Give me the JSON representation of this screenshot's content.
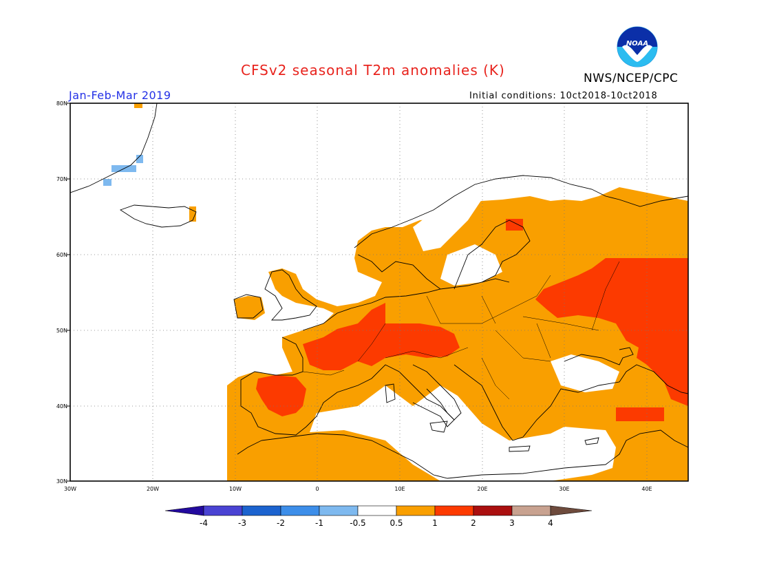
{
  "header": {
    "title": "CFSv2 seasonal T2m anomalies (K)",
    "agency": "NWS/NCEP/CPC",
    "period": "Jan-Feb-Mar 2019",
    "initial_conditions": "Initial conditions: 10ct2018-10ct2018",
    "logo_text": "NOAA"
  },
  "map": {
    "lat_labels": [
      "80N",
      "70N",
      "60N",
      "50N",
      "40N",
      "30N"
    ],
    "lon_labels": [
      "30W",
      "20W",
      "10W",
      "0",
      "10E",
      "20E",
      "30E",
      "40E"
    ],
    "extent": {
      "lon": [
        -30,
        45
      ],
      "lat": [
        30,
        80
      ]
    }
  },
  "colorbar": {
    "labels": [
      "-4",
      "-3",
      "-2",
      "-1",
      "-0.5",
      "0.5",
      "1",
      "2",
      "3",
      "4"
    ],
    "colors": [
      "#230a9e",
      "#4a43d3",
      "#1c63cf",
      "#3d8ee9",
      "#7eb9ef",
      "#ffffff",
      "#f99f00",
      "#fc3a00",
      "#aa0f0f",
      "#c8a290",
      "#6e4b3d"
    ]
  }
}
